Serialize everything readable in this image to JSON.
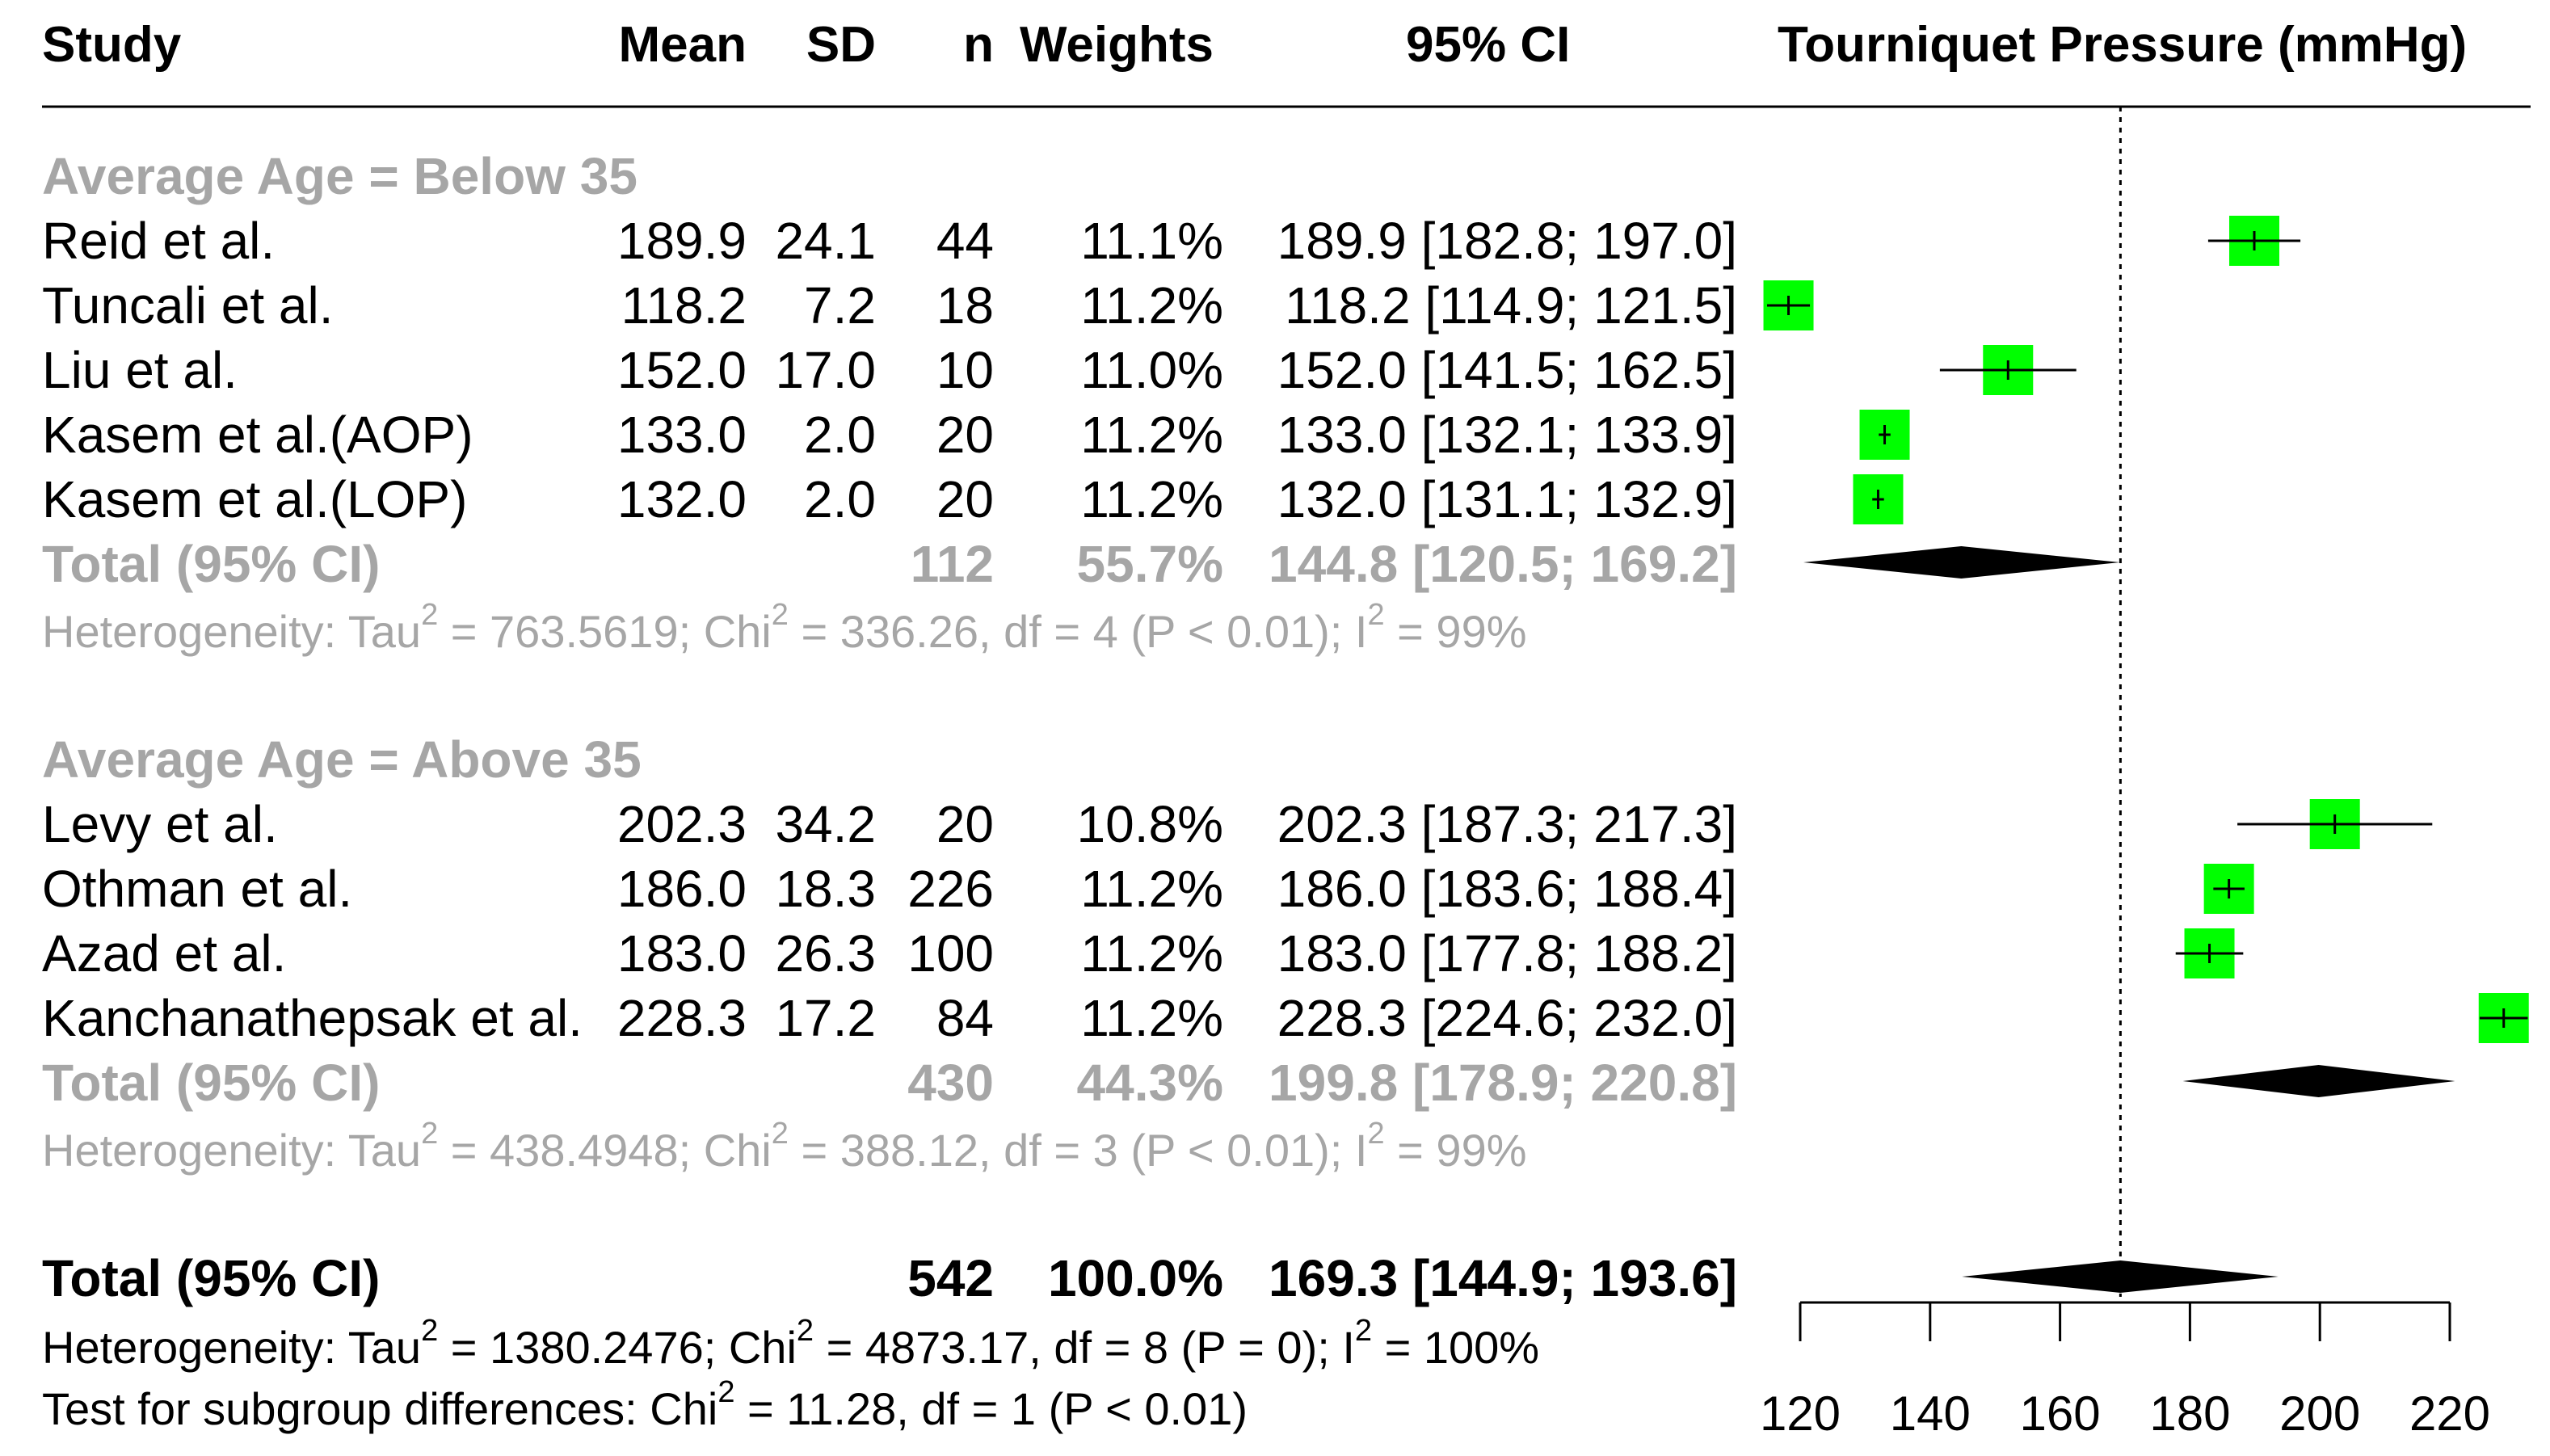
{
  "header": {
    "study": "Study",
    "mean": "Mean",
    "sd": "SD",
    "n": "n",
    "weights": "Weights",
    "ci": "95% CI",
    "axis_title": "Tourniquet Pressure (mmHg)"
  },
  "groups": [
    {
      "title": "Average Age = Below 35",
      "studies": [
        {
          "study": "Reid et al.",
          "mean": "189.9",
          "sd": "24.1",
          "n": "44",
          "weight": "11.1%",
          "ci": "189.9 [182.8; 197.0]"
        },
        {
          "study": "Tuncali et al.",
          "mean": "118.2",
          "sd": "7.2",
          "n": "18",
          "weight": "11.2%",
          "ci": "118.2 [114.9; 121.5]"
        },
        {
          "study": "Liu et al.",
          "mean": "152.0",
          "sd": "17.0",
          "n": "10",
          "weight": "11.0%",
          "ci": "152.0 [141.5; 162.5]"
        },
        {
          "study": "Kasem et al.(AOP)",
          "mean": "133.0",
          "sd": "2.0",
          "n": "20",
          "weight": "11.2%",
          "ci": "133.0 [132.1; 133.9]"
        },
        {
          "study": "Kasem et al.(LOP)",
          "mean": "132.0",
          "sd": "2.0",
          "n": "20",
          "weight": "11.2%",
          "ci": "132.0 [131.1; 132.9]"
        }
      ],
      "total": {
        "label": "Total (95% CI)",
        "n": "112",
        "weight": "55.7%",
        "ci": "144.8 [120.5; 169.2]"
      },
      "het": {
        "a": "Heterogeneity: Tau",
        "b": " = 763.5619; Chi",
        "c": " = 336.26, df = 4 (P < 0.01); I",
        "d": " = 99%"
      }
    },
    {
      "title": "Average Age = Above 35",
      "studies": [
        {
          "study": "Levy et al.",
          "mean": "202.3",
          "sd": "34.2",
          "n": "20",
          "weight": "10.8%",
          "ci": "202.3 [187.3; 217.3]"
        },
        {
          "study": "Othman et al.",
          "mean": "186.0",
          "sd": "18.3",
          "n": "226",
          "weight": "11.2%",
          "ci": "186.0 [183.6; 188.4]"
        },
        {
          "study": "Azad et al.",
          "mean": "183.0",
          "sd": "26.3",
          "n": "100",
          "weight": "11.2%",
          "ci": "183.0 [177.8; 188.2]"
        },
        {
          "study": "Kanchanathepsak et al.",
          "mean": "228.3",
          "sd": "17.2",
          "n": "84",
          "weight": "11.2%",
          "ci": "228.3 [224.6; 232.0]"
        }
      ],
      "total": {
        "label": "Total (95% CI)",
        "n": "430",
        "weight": "44.3%",
        "ci": "199.8 [178.9; 220.8]"
      },
      "het": {
        "a": "Heterogeneity: Tau",
        "b": " = 438.4948; Chi",
        "c": " = 388.12, df = 3 (P < 0.01); I",
        "d": " = 99%"
      }
    }
  ],
  "overall": {
    "label": "Total (95% CI)",
    "n": "542",
    "weight": "100.0%",
    "ci": "169.3 [144.9; 193.6]",
    "het": {
      "a": "Heterogeneity: Tau",
      "b": " = 1380.2476; Chi",
      "c": " = 4873.17, df = 8 (P = 0); I",
      "d": " = 100%"
    },
    "subgroup": {
      "a": "Test for subgroup differences: Chi",
      "b": " = 11.28, df = 1 (P < 0.01)"
    }
  },
  "sup": "2",
  "colors": {
    "marker": "#00ff00",
    "diamond": "#000000",
    "grey_text": "#a6a6a6"
  },
  "chart_data": {
    "type": "forest",
    "xlabel": "Tourniquet Pressure (mmHg)",
    "xlim": [
      120,
      220
    ],
    "ticks": [
      "120",
      "140",
      "160",
      "180",
      "200",
      "220"
    ],
    "reference_line": 169.3,
    "studies": [
      {
        "group": "Average Age = Below 35",
        "name": "Reid et al.",
        "est": 189.9,
        "lo": 182.8,
        "hi": 197.0,
        "weight": 11.1
      },
      {
        "group": "Average Age = Below 35",
        "name": "Tuncali et al.",
        "est": 118.2,
        "lo": 114.9,
        "hi": 121.5,
        "weight": 11.2
      },
      {
        "group": "Average Age = Below 35",
        "name": "Liu et al.",
        "est": 152.0,
        "lo": 141.5,
        "hi": 162.5,
        "weight": 11.0
      },
      {
        "group": "Average Age = Below 35",
        "name": "Kasem et al.(AOP)",
        "est": 133.0,
        "lo": 132.1,
        "hi": 133.9,
        "weight": 11.2
      },
      {
        "group": "Average Age = Below 35",
        "name": "Kasem et al.(LOP)",
        "est": 132.0,
        "lo": 131.1,
        "hi": 132.9,
        "weight": 11.2
      },
      {
        "group": "Average Age = Above 35",
        "name": "Levy et al.",
        "est": 202.3,
        "lo": 187.3,
        "hi": 217.3,
        "weight": 10.8
      },
      {
        "group": "Average Age = Above 35",
        "name": "Othman et al.",
        "est": 186.0,
        "lo": 183.6,
        "hi": 188.4,
        "weight": 11.2
      },
      {
        "group": "Average Age = Above 35",
        "name": "Azad et al.",
        "est": 183.0,
        "lo": 177.8,
        "hi": 188.2,
        "weight": 11.2
      },
      {
        "group": "Average Age = Above 35",
        "name": "Kanchanathepsak et al.",
        "est": 228.3,
        "lo": 224.6,
        "hi": 232.0,
        "weight": 11.2
      }
    ],
    "subgroup_totals": [
      {
        "group": "Average Age = Below 35",
        "est": 144.8,
        "lo": 120.5,
        "hi": 169.2,
        "weight": 55.7
      },
      {
        "group": "Average Age = Above 35",
        "est": 199.8,
        "lo": 178.9,
        "hi": 220.8,
        "weight": 44.3
      }
    ],
    "overall": {
      "est": 169.3,
      "lo": 144.9,
      "hi": 193.6,
      "weight": 100.0
    }
  }
}
